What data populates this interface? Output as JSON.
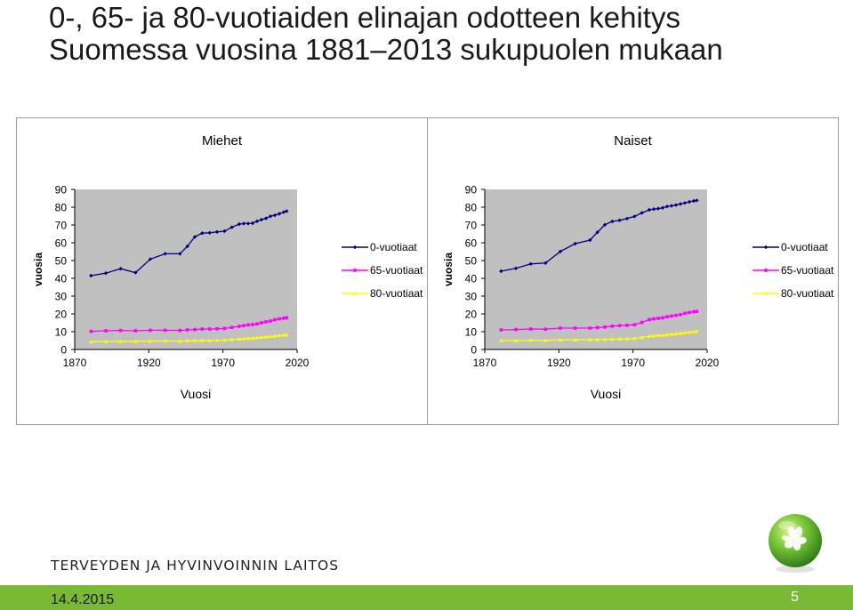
{
  "title_line1": "0-, 65- ja 80-vuotiaiden elinajan odotteen kehitys",
  "title_line2": "Suomessa vuosina 1881–2013 sukupuolen mukaan",
  "organization": "TERVEYDEN JA HYVINVOINNIN LAITOS",
  "date": "14.4.2015",
  "page_number": "5",
  "colors": {
    "series0": "#000080",
    "series65": "#ff00ff",
    "series80": "#ffff00",
    "footer": "#7ab935",
    "plot_bg": "#c0c0c0"
  },
  "logo_icon": "globe-leaf-icon",
  "chart_data": [
    {
      "type": "line",
      "title": "Miehet",
      "xlabel": "Vuosi",
      "ylabel": "vuosia",
      "xlim": [
        1870,
        2020
      ],
      "ylim": [
        0,
        90
      ],
      "x_ticks": [
        "1870",
        "1920",
        "1970",
        "2020"
      ],
      "y_ticks": [
        "0",
        "10",
        "20",
        "30",
        "40",
        "50",
        "60",
        "70",
        "80",
        "90"
      ],
      "legend_position": "right",
      "x": [
        1881,
        1891,
        1901,
        1911,
        1921,
        1931,
        1941,
        1946,
        1951,
        1956,
        1961,
        1966,
        1971,
        1976,
        1981,
        1984,
        1987,
        1990,
        1993,
        1996,
        1999,
        2002,
        2005,
        2008,
        2011,
        2013
      ],
      "series": [
        {
          "name": "0-vuotiaat",
          "values": [
            41.5,
            42.9,
            45.4,
            43.2,
            50.8,
            53.8,
            53.8,
            58.0,
            63.3,
            65.4,
            65.6,
            66.1,
            66.5,
            68.7,
            70.5,
            70.8,
            70.8,
            71.0,
            72.1,
            73.0,
            73.7,
            74.9,
            75.5,
            76.3,
            77.2,
            77.8
          ]
        },
        {
          "name": "65-vuotiaat",
          "values": [
            10.2,
            10.5,
            10.7,
            10.5,
            10.8,
            10.8,
            10.7,
            11.0,
            11.2,
            11.5,
            11.5,
            11.6,
            11.8,
            12.4,
            13.0,
            13.4,
            13.8,
            14.0,
            14.4,
            15.0,
            15.5,
            16.0,
            16.7,
            17.2,
            17.6,
            17.8
          ]
        },
        {
          "name": "80-vuotiaat",
          "values": [
            4.4,
            4.5,
            4.6,
            4.6,
            4.7,
            4.8,
            4.7,
            4.9,
            5.0,
            5.1,
            5.1,
            5.2,
            5.3,
            5.6,
            5.9,
            6.1,
            6.3,
            6.4,
            6.6,
            6.9,
            7.1,
            7.3,
            7.6,
            7.9,
            8.2,
            8.3
          ]
        }
      ]
    },
    {
      "type": "line",
      "title": "Naiset",
      "xlabel": "Vuosi",
      "ylabel": "vuosia",
      "xlim": [
        1870,
        2020
      ],
      "ylim": [
        0,
        90
      ],
      "x_ticks": [
        "1870",
        "1920",
        "1970",
        "2020"
      ],
      "y_ticks": [
        "0",
        "10",
        "20",
        "30",
        "40",
        "50",
        "60",
        "70",
        "80",
        "90"
      ],
      "legend_position": "right",
      "x": [
        1881,
        1891,
        1901,
        1911,
        1921,
        1931,
        1941,
        1946,
        1951,
        1956,
        1961,
        1966,
        1971,
        1976,
        1981,
        1984,
        1987,
        1990,
        1993,
        1996,
        1999,
        2002,
        2005,
        2008,
        2011,
        2013
      ],
      "series": [
        {
          "name": "0-vuotiaat",
          "values": [
            44.0,
            45.6,
            48.1,
            48.6,
            55.1,
            59.5,
            61.5,
            65.9,
            70.1,
            72.0,
            72.6,
            73.6,
            74.8,
            76.8,
            78.5,
            78.9,
            79.2,
            79.6,
            80.4,
            80.8,
            81.2,
            81.8,
            82.4,
            83.0,
            83.5,
            83.8
          ]
        },
        {
          "name": "65-vuotiaat",
          "values": [
            11.0,
            11.2,
            11.5,
            11.4,
            12.0,
            12.0,
            12.0,
            12.3,
            12.6,
            13.1,
            13.4,
            13.6,
            13.9,
            15.2,
            16.8,
            17.2,
            17.5,
            17.8,
            18.4,
            18.8,
            19.2,
            19.6,
            20.3,
            20.8,
            21.2,
            21.4
          ]
        },
        {
          "name": "80-vuotiaat",
          "values": [
            5.0,
            5.0,
            5.2,
            5.1,
            5.4,
            5.4,
            5.5,
            5.6,
            5.7,
            5.8,
            5.9,
            6.0,
            6.2,
            6.8,
            7.5,
            7.7,
            7.9,
            8.0,
            8.3,
            8.6,
            8.8,
            9.1,
            9.4,
            9.7,
            10.0,
            10.2
          ]
        }
      ]
    }
  ]
}
